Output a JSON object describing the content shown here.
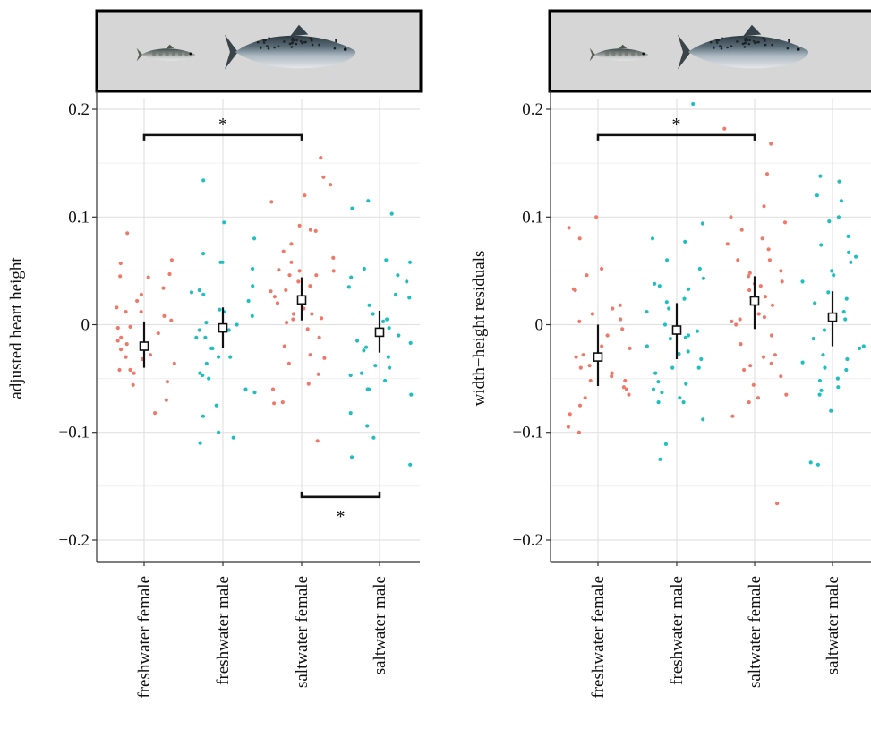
{
  "chart_data": [
    {
      "type": "scatter",
      "title": "",
      "xlabel": "",
      "ylabel": "adjusted heart height",
      "categories": [
        "freshwater female",
        "freshwater male",
        "saltwater female",
        "saltwater male"
      ],
      "ylim": [
        -0.22,
        0.21
      ],
      "yticks": [
        0.2,
        0.1,
        0,
        -0.1,
        -0.2
      ],
      "ytick_labels": [
        "0.2",
        "0.1",
        "0",
        "−0.1",
        "−0.2"
      ],
      "grid": true,
      "legend": "none",
      "colors": {
        "female": "#F07868",
        "male": "#1DBFC1"
      },
      "header_image": "two salmon fish (small parr and large adult) on a grey banner",
      "means": [
        {
          "category": "freshwater female",
          "mean": -0.02,
          "lower": -0.04,
          "upper": 0.003
        },
        {
          "category": "freshwater male",
          "mean": -0.003,
          "lower": -0.022,
          "upper": 0.016
        },
        {
          "category": "saltwater female",
          "mean": 0.023,
          "lower": 0.004,
          "upper": 0.044
        },
        {
          "category": "saltwater male",
          "mean": -0.007,
          "lower": -0.026,
          "upper": 0.013
        }
      ],
      "points": [
        {
          "category": "freshwater female",
          "values": [
            0.085,
            0.057,
            0.047,
            0.028,
            0.022,
            0.012,
            0.008,
            0.004,
            -0.003,
            -0.008,
            -0.012,
            -0.018,
            -0.028,
            -0.032,
            -0.042,
            -0.053,
            -0.056,
            -0.082,
            0.06,
            0.045,
            0.034,
            0.012,
            -0.002,
            -0.015,
            -0.023,
            -0.03,
            -0.036,
            -0.042,
            -0.045,
            -0.07,
            0.044,
            0.016
          ]
        },
        {
          "category": "freshwater male",
          "values": [
            0.095,
            0.08,
            0.058,
            0.036,
            0.03,
            0.022,
            0.012,
            0.008,
            0.0,
            -0.005,
            -0.012,
            -0.022,
            -0.03,
            -0.036,
            -0.047,
            -0.063,
            -0.1,
            -0.105,
            -0.11,
            0.134,
            0.066,
            0.058,
            0.052,
            0.028,
            0.014,
            -0.005,
            -0.012,
            -0.03,
            -0.045,
            -0.05,
            -0.06,
            -0.075,
            -0.085,
            0.032,
            -0.022,
            0.002
          ]
        },
        {
          "category": "saltwater female",
          "values": [
            0.155,
            0.137,
            0.114,
            0.092,
            0.088,
            0.075,
            0.068,
            0.062,
            0.058,
            0.05,
            0.046,
            0.04,
            0.036,
            0.031,
            0.026,
            0.02,
            0.015,
            0.01,
            0.005,
            0.002,
            -0.004,
            -0.012,
            -0.028,
            -0.036,
            -0.046,
            -0.06,
            -0.072,
            -0.108,
            0.13,
            0.087,
            0.051,
            0.046,
            0.032,
            0.01,
            0.006,
            -0.02,
            -0.031,
            -0.055,
            -0.073,
            0.05,
            0.12
          ]
        },
        {
          "category": "saltwater male",
          "values": [
            0.108,
            0.103,
            0.06,
            0.058,
            0.052,
            0.046,
            0.04,
            0.035,
            0.025,
            0.018,
            0.01,
            0.003,
            -0.003,
            -0.01,
            -0.017,
            -0.024,
            -0.03,
            -0.04,
            -0.052,
            -0.06,
            -0.065,
            -0.082,
            -0.094,
            -0.105,
            -0.123,
            -0.13,
            0.115,
            0.044,
            0.028,
            -0.015,
            -0.038,
            -0.047,
            -0.06,
            0.005,
            -0.021,
            -0.045
          ]
        }
      ],
      "significance": [
        {
          "from": "freshwater female",
          "to": "saltwater female",
          "y": 0.176,
          "label": "*",
          "side": "above"
        },
        {
          "from": "saltwater female",
          "to": "saltwater male",
          "y": -0.16,
          "label": "*",
          "side": "below"
        }
      ]
    },
    {
      "type": "scatter",
      "title": "",
      "xlabel": "",
      "ylabel": "width−height residuals",
      "categories": [
        "freshwater female",
        "freshwater male",
        "saltwater female",
        "saltwater male"
      ],
      "ylim": [
        -0.22,
        0.21
      ],
      "yticks": [
        0.2,
        0.1,
        0,
        -0.1,
        -0.2
      ],
      "ytick_labels": [
        "0.2",
        "0.1",
        "0",
        "−0.1",
        "−0.2"
      ],
      "grid": true,
      "legend": "none",
      "colors": {
        "female": "#F07868",
        "male": "#1DBFC1"
      },
      "header_image": "two salmon fish (small parr and large adult) on a grey banner",
      "means": [
        {
          "category": "freshwater female",
          "mean": -0.03,
          "lower": -0.057,
          "upper": 0.0
        },
        {
          "category": "freshwater male",
          "mean": -0.005,
          "lower": -0.032,
          "upper": 0.02
        },
        {
          "category": "saltwater female",
          "mean": 0.022,
          "lower": -0.004,
          "upper": 0.045
        },
        {
          "category": "saltwater male",
          "mean": 0.007,
          "lower": -0.02,
          "upper": 0.031
        }
      ],
      "points": [
        {
          "category": "freshwater female",
          "values": [
            0.1,
            0.09,
            0.052,
            0.033,
            0.015,
            0.01,
            0.003,
            -0.01,
            -0.022,
            -0.03,
            -0.04,
            -0.048,
            -0.052,
            -0.058,
            -0.065,
            -0.068,
            -0.083,
            0.08,
            0.046,
            0.032,
            0.018,
            -0.004,
            -0.02,
            -0.028,
            -0.038,
            -0.045,
            -0.052,
            -0.075,
            -0.095,
            -0.1,
            0.005,
            -0.06
          ]
        },
        {
          "category": "freshwater male",
          "values": [
            0.205,
            0.094,
            0.08,
            0.077,
            0.06,
            0.052,
            0.043,
            0.033,
            0.024,
            0.012,
            0.0,
            -0.006,
            -0.013,
            -0.025,
            -0.032,
            -0.04,
            -0.045,
            -0.053,
            -0.068,
            -0.072,
            -0.125,
            0.038,
            0.036,
            0.015,
            -0.01,
            -0.012,
            -0.02,
            -0.027,
            -0.04,
            -0.055,
            -0.06,
            -0.063,
            -0.072,
            -0.088,
            -0.111,
            0.021
          ]
        },
        {
          "category": "saltwater female",
          "values": [
            0.182,
            0.168,
            0.14,
            0.1,
            0.095,
            0.088,
            0.08,
            0.07,
            0.06,
            0.05,
            0.045,
            0.04,
            0.032,
            0.025,
            0.018,
            0.01,
            0.005,
            0.0,
            -0.01,
            -0.018,
            -0.03,
            -0.038,
            -0.048,
            -0.056,
            -0.065,
            -0.068,
            -0.085,
            -0.166,
            0.11,
            0.075,
            0.048,
            0.036,
            0.026,
            0.003,
            -0.028,
            -0.042,
            -0.072,
            0.06,
            0.038,
            0.007,
            -0.036
          ]
        },
        {
          "category": "saltwater male",
          "values": [
            0.138,
            0.133,
            0.12,
            0.115,
            0.1,
            0.082,
            0.074,
            0.067,
            0.063,
            0.058,
            0.05,
            0.04,
            0.03,
            0.02,
            0.012,
            0.005,
            -0.005,
            -0.013,
            -0.02,
            -0.028,
            -0.035,
            -0.042,
            -0.05,
            -0.058,
            -0.065,
            -0.08,
            -0.13,
            -0.128,
            0.096,
            0.046,
            0.024,
            -0.022,
            -0.032,
            -0.04,
            -0.052,
            -0.061
          ]
        }
      ],
      "significance": [
        {
          "from": "freshwater female",
          "to": "saltwater female",
          "y": 0.176,
          "label": "*",
          "side": "above"
        }
      ]
    }
  ]
}
